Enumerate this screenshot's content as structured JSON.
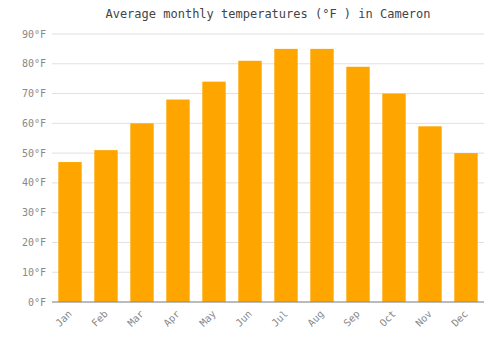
{
  "chart_data": {
    "type": "bar",
    "title": "Average monthly temperatures (°F ) in Cameron",
    "categories": [
      "Jan",
      "Feb",
      "Mar",
      "Apr",
      "May",
      "Jun",
      "Jul",
      "Aug",
      "Sep",
      "Oct",
      "Nov",
      "Dec"
    ],
    "values": [
      47,
      51,
      60,
      68,
      74,
      81,
      85,
      85,
      79,
      70,
      59,
      50
    ],
    "color": "#FFA500",
    "ylim": [
      0,
      90
    ],
    "yticks": [
      {
        "value": 0,
        "label": "0°F"
      },
      {
        "value": 10,
        "label": "10°F"
      },
      {
        "value": 20,
        "label": "20°F"
      },
      {
        "value": 30,
        "label": "30°F"
      },
      {
        "value": 40,
        "label": "40°F"
      },
      {
        "value": 50,
        "label": "50°F"
      },
      {
        "value": 60,
        "label": "60°F"
      },
      {
        "value": 70,
        "label": "70°F"
      },
      {
        "value": 80,
        "label": "80°F"
      },
      {
        "value": 90,
        "label": "90°F"
      }
    ],
    "grid": true
  }
}
